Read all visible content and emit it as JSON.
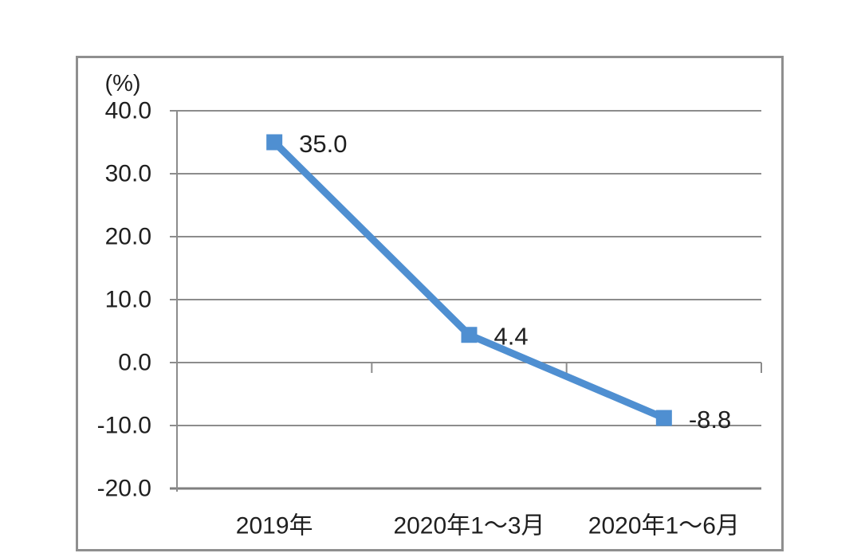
{
  "chart_data": {
    "type": "line",
    "title": "",
    "unit_label": "(%)",
    "categories": [
      "2019年",
      "2020年1～3月",
      "2020年1～6月"
    ],
    "series": [
      {
        "name": "",
        "values": [
          35.0,
          4.4,
          -8.8
        ]
      }
    ],
    "data_labels": [
      "35.0",
      "4.4",
      "-8.8"
    ],
    "yticks": [
      40,
      30,
      20,
      10,
      0,
      -10,
      -20
    ],
    "ytick_labels": [
      "40.0",
      "30.0",
      "20.0",
      "10.0",
      "0.0",
      "-10.0",
      "-20.0"
    ],
    "ylim": [
      -20,
      40
    ],
    "zero_axis": 0,
    "grid": true,
    "legend": "none",
    "marker": "square",
    "colors": {
      "line": "#4f8fd1",
      "grid": "#8c8c8c",
      "axis_bottom": "#7f7f7f",
      "text": "#1f1f1f",
      "frame": "#8f8f8f",
      "background": "#ffffff"
    }
  }
}
